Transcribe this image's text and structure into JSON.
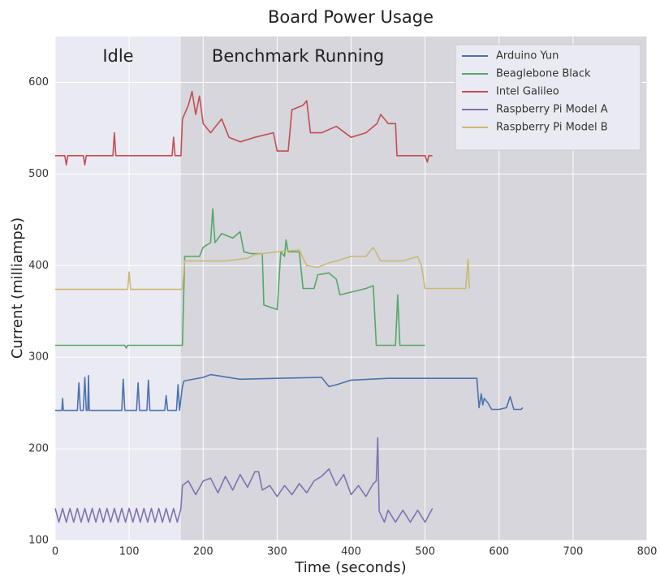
{
  "chart_data": {
    "type": "line",
    "title": "Board Power Usage",
    "x_label": "Time (seconds)",
    "y_label": "Current (milliamps)",
    "xlim": [
      0,
      800
    ],
    "xticks": [
      0,
      100,
      200,
      300,
      400,
      500,
      600,
      700,
      800
    ],
    "ylim": [
      100,
      650
    ],
    "yticks": [
      100,
      200,
      300,
      400,
      500,
      600
    ],
    "grid": true,
    "legend": "upper right",
    "regions": [
      {
        "label": "Idle",
        "xlim": [
          0,
          170
        ],
        "color": "#eaeaf2"
      },
      {
        "label": "Benchmark Running",
        "xlim": [
          170,
          800
        ],
        "color": "#d6d6dc"
      }
    ],
    "series": [
      {
        "name": "Arduino Yun",
        "color": "#4c72b0",
        "x": [
          0,
          9,
          10,
          11,
          30,
          32,
          34,
          38,
          40,
          42,
          44,
          45,
          46,
          90,
          92,
          94,
          110,
          112,
          114,
          124,
          126,
          128,
          148,
          150,
          152,
          164,
          166,
          168,
          172,
          174,
          180,
          200,
          210,
          250,
          300,
          360,
          370,
          380,
          400,
          450,
          500,
          570,
          573,
          576,
          578,
          580,
          585,
          590,
          600,
          610,
          615,
          620,
          630,
          632
        ],
        "values": [
          242,
          242,
          255,
          242,
          242,
          272,
          242,
          242,
          278,
          242,
          242,
          280,
          242,
          242,
          276,
          242,
          242,
          272,
          242,
          242,
          275,
          242,
          242,
          258,
          242,
          242,
          270,
          242,
          268,
          274,
          275,
          278,
          281,
          276,
          277,
          278,
          268,
          270,
          275,
          277,
          277,
          277,
          245,
          260,
          248,
          255,
          250,
          243,
          243,
          245,
          257,
          243,
          243,
          245
        ]
      },
      {
        "name": "Beaglebone Black",
        "color": "#55a868",
        "x": [
          0,
          94,
          96,
          98,
          170,
          172,
          175,
          195,
          200,
          210,
          213,
          216,
          225,
          240,
          250,
          255,
          265,
          280,
          282,
          300,
          305,
          310,
          312,
          315,
          330,
          335,
          350,
          355,
          370,
          380,
          385,
          420,
          430,
          434,
          460,
          463,
          466,
          500
        ],
        "values": [
          313,
          313,
          310,
          313,
          313,
          313,
          410,
          410,
          420,
          425,
          462,
          425,
          435,
          430,
          437,
          415,
          413,
          413,
          357,
          352,
          415,
          410,
          428,
          415,
          415,
          375,
          375,
          390,
          392,
          385,
          368,
          375,
          378,
          313,
          313,
          368,
          313,
          313
        ]
      },
      {
        "name": "Intel Galileo",
        "color": "#c44e52",
        "x": [
          0,
          13,
          15,
          17,
          38,
          40,
          42,
          78,
          80,
          82,
          158,
          160,
          162,
          170,
          172,
          180,
          185,
          190,
          195,
          200,
          210,
          225,
          235,
          250,
          270,
          295,
          300,
          315,
          320,
          335,
          340,
          345,
          360,
          380,
          400,
          420,
          435,
          440,
          450,
          460,
          462,
          500,
          503,
          505,
          510
        ],
        "values": [
          520,
          520,
          510,
          520,
          520,
          510,
          520,
          520,
          545,
          520,
          520,
          540,
          520,
          520,
          560,
          575,
          590,
          565,
          585,
          555,
          545,
          560,
          540,
          535,
          540,
          545,
          525,
          525,
          570,
          575,
          580,
          545,
          545,
          552,
          540,
          545,
          555,
          565,
          555,
          555,
          520,
          520,
          513,
          520,
          520
        ]
      },
      {
        "name": "Raspberry Pi Model A",
        "color": "#8172b2",
        "x": [
          0,
          5,
          10,
          15,
          20,
          25,
          30,
          35,
          40,
          45,
          50,
          55,
          60,
          65,
          70,
          75,
          80,
          85,
          90,
          95,
          100,
          105,
          110,
          115,
          120,
          125,
          130,
          135,
          140,
          145,
          150,
          155,
          160,
          165,
          170,
          172,
          180,
          190,
          200,
          210,
          220,
          230,
          240,
          250,
          260,
          270,
          275,
          280,
          290,
          300,
          310,
          320,
          330,
          340,
          350,
          360,
          370,
          380,
          390,
          400,
          410,
          420,
          430,
          434,
          436,
          438,
          445,
          450,
          460,
          470,
          480,
          490,
          500,
          510
        ],
        "values": [
          135,
          120,
          135,
          120,
          135,
          120,
          135,
          120,
          135,
          120,
          135,
          120,
          135,
          120,
          135,
          120,
          135,
          120,
          135,
          120,
          135,
          120,
          135,
          120,
          135,
          120,
          135,
          120,
          135,
          120,
          135,
          120,
          135,
          120,
          135,
          160,
          165,
          150,
          165,
          168,
          152,
          170,
          155,
          172,
          158,
          175,
          175,
          155,
          160,
          148,
          160,
          150,
          162,
          152,
          165,
          170,
          178,
          160,
          172,
          150,
          160,
          148,
          162,
          165,
          212,
          132,
          120,
          133,
          120,
          133,
          120,
          133,
          120,
          135
        ]
      },
      {
        "name": "Raspberry Pi Model B",
        "color": "#ccb974",
        "x": [
          0,
          98,
          100,
          102,
          170,
          172,
          175,
          200,
          230,
          260,
          270,
          300,
          330,
          340,
          355,
          370,
          380,
          400,
          420,
          430,
          440,
          470,
          490,
          495,
          500,
          555,
          558,
          560
        ],
        "values": [
          374,
          374,
          393,
          374,
          374,
          375,
          405,
          405,
          405,
          408,
          412,
          415,
          417,
          400,
          398,
          403,
          405,
          410,
          410,
          420,
          405,
          405,
          410,
          400,
          375,
          375,
          407,
          375
        ]
      }
    ]
  }
}
